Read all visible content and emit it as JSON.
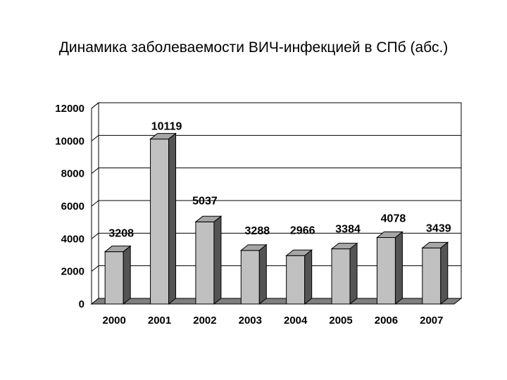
{
  "chart_data": {
    "type": "bar",
    "title": "Динамика заболеваемости ВИЧ-инфекцией в СПб (абс.)",
    "categories": [
      "2000",
      "2001",
      "2002",
      "2003",
      "2004",
      "2005",
      "2006",
      "2007"
    ],
    "values": [
      3208,
      10119,
      5037,
      3288,
      2966,
      3384,
      4078,
      3439
    ],
    "data_labels": [
      "3208",
      "10119",
      "5037",
      "3288",
      "2966",
      "3384",
      "4078",
      "3439"
    ],
    "xlabel": "",
    "ylabel": "",
    "ylim": [
      0,
      12000
    ],
    "yticks": [
      "0",
      "2000",
      "4000",
      "6000",
      "8000",
      "10000",
      "12000"
    ],
    "grid": true,
    "legend": "none",
    "style": "3d",
    "colors": {
      "bar_front": "#c0c0c0",
      "bar_top": "#a6a6a6",
      "bar_side": "#545454",
      "floor": "#7f7f7f"
    }
  }
}
